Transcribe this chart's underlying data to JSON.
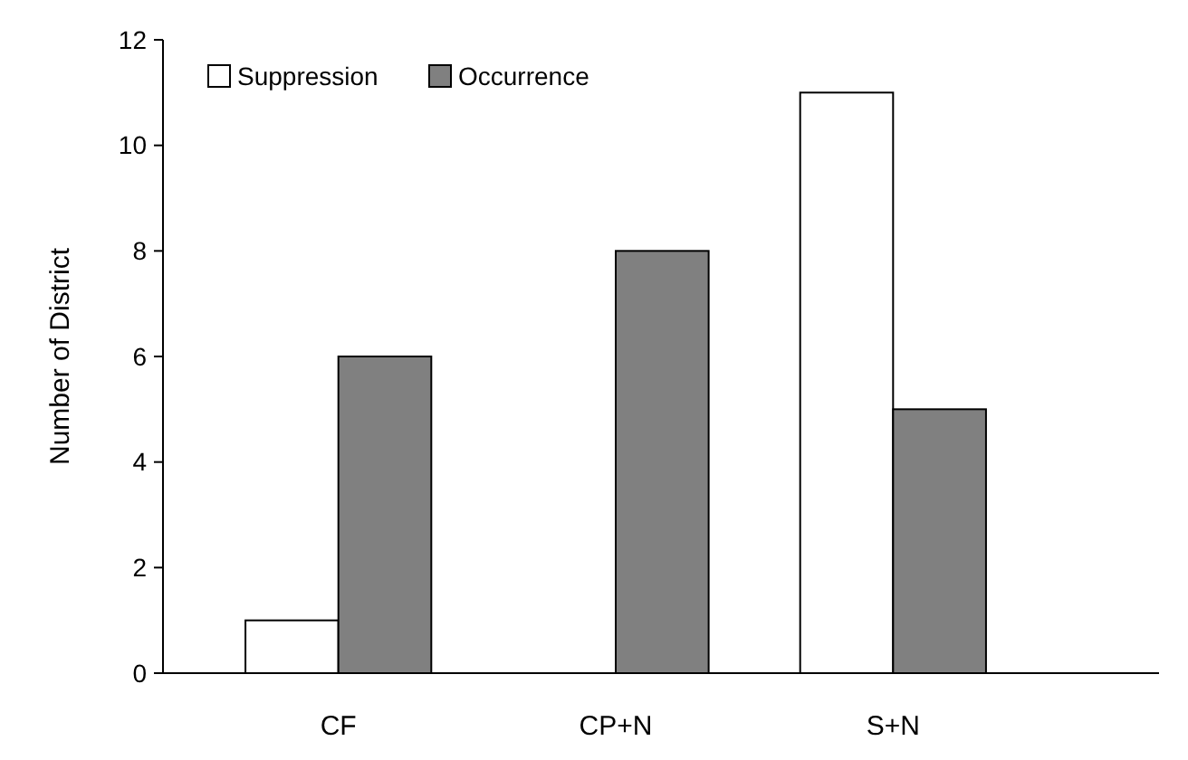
{
  "chart_data": {
    "type": "bar",
    "ylabel": "Number of District",
    "categories": [
      "CF",
      "CP+N",
      "S+N"
    ],
    "series": [
      {
        "name": "Suppression",
        "color": "#ffffff",
        "values": [
          1,
          0,
          11
        ]
      },
      {
        "name": "Occurrence",
        "color": "#808080",
        "values": [
          6,
          8,
          5
        ]
      }
    ],
    "ylim": [
      0,
      12
    ],
    "yticks": [
      0,
      2,
      4,
      6,
      8,
      10,
      12
    ],
    "legend": "top left",
    "grid": false
  }
}
